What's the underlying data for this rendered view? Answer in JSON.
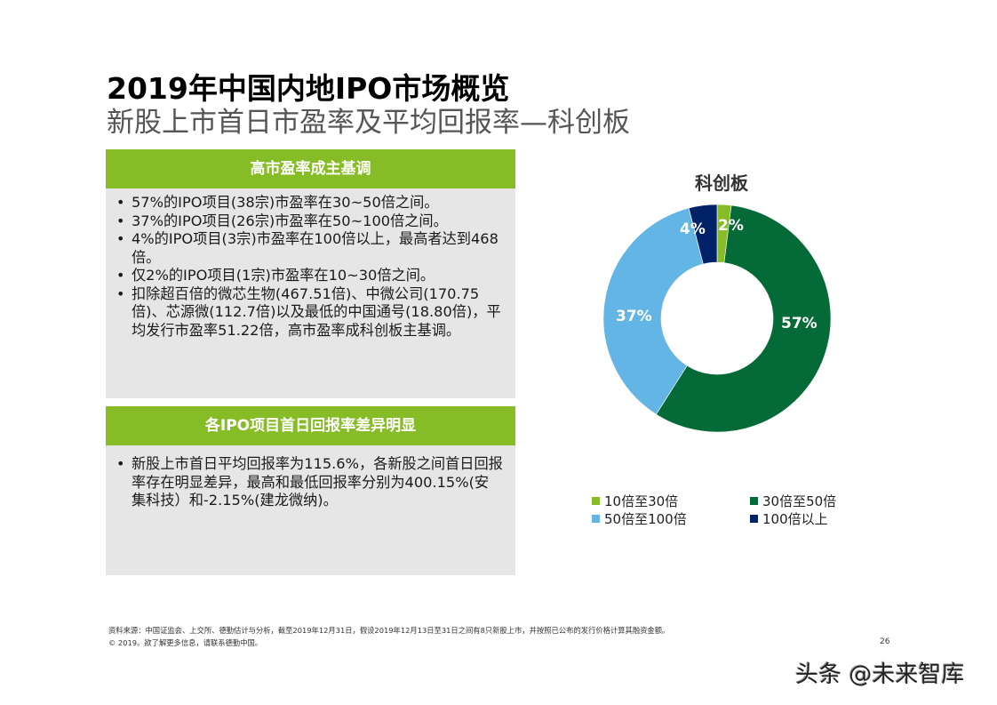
{
  "header": {
    "title": "2019年中国内地IPO市场概览",
    "subtitle": "新股上市首日市盈率及平均回报率—科创板"
  },
  "panels": [
    {
      "heading": "高市盈率成主基调",
      "bullets": [
        "57%的IPO项目(38宗)市盈率在30~50倍之间。",
        "37%的IPO项目(26宗)市盈率在50~100倍之间。",
        "4%的IPO项目(3宗)市盈率在100倍以上，最高者达到468倍。",
        "仅2%的IPO项目(1宗)市盈率在10~30倍之间。",
        "扣除超百倍的微芯生物(467.51倍)、中微公司(170.75倍)、芯源微(112.7倍)以及最低的中国通号(18.80倍)，平均发行市盈率51.22倍，高市盈率成科创板主基调。"
      ]
    },
    {
      "heading": "各IPO项目首日回报率差异明显",
      "bullets": [
        "新股上市首日平均回报率为115.6%，各新股之间首日回报率存在明显差异，最高和最低回报率分别为400.15%(安集科技）和-2.15%(建龙微纳)。"
      ]
    }
  ],
  "chart_data": {
    "type": "pie",
    "variant": "donut",
    "title": "科创板",
    "categories": [
      "10倍至30倍",
      "30倍至50倍",
      "50倍至100倍",
      "100倍以上"
    ],
    "values": [
      2,
      57,
      37,
      4
    ],
    "labels": [
      "2%",
      "57%",
      "37%",
      "4%"
    ],
    "colors": [
      "#86bc25",
      "#046a38",
      "#62b5e5",
      "#012169"
    ],
    "start_angle": "12 o'clock, clockwise",
    "legend_position": "bottom"
  },
  "legend": {
    "items": [
      {
        "label": "10倍至30倍",
        "color": "#86bc25"
      },
      {
        "label": "30倍至50倍",
        "color": "#046a38"
      },
      {
        "label": "50倍至100倍",
        "color": "#62b5e5"
      },
      {
        "label": "100倍以上",
        "color": "#012169"
      }
    ]
  },
  "footer": {
    "source": "资料来源：中国证监会、上交所、德勤估计与分析，截至2019年12月31日，假设2019年12月13日至31日之间有8只新股上市，并按照已公布的发行价格计算其融资金额。",
    "copyright": "© 2019。欲了解更多信息，请联系德勤中国。",
    "page_number": "26"
  },
  "watermark": "头条 @未来智库"
}
